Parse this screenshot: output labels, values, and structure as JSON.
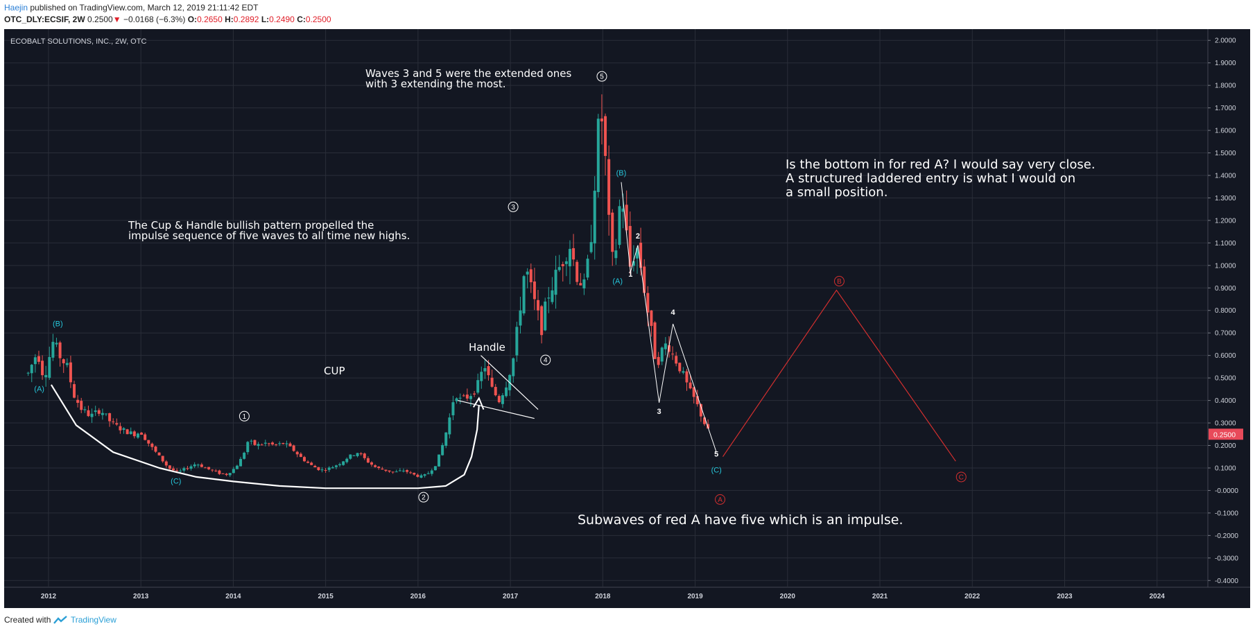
{
  "header": {
    "author": "Haejin",
    "published": " published on TradingView.com, March 12, 2019 21:11:42 EDT",
    "symbol": "OTC_DLY:ECSIF, 2W",
    "last": "0.2500",
    "change_arrow": "▼",
    "change": "−0.0168 (−6.3%)",
    "o_label": "O:",
    "o": "0.2650",
    "h_label": "H:",
    "h": "0.2892",
    "l_label": "L:",
    "l": "0.2490",
    "c_label": "C:",
    "c": "0.2500"
  },
  "footer": {
    "created": "Created with",
    "brand": "TradingView"
  },
  "colors": {
    "bg": "#131722",
    "grid": "#2a2e39",
    "up": "#26a69a",
    "down": "#ef5350",
    "accent_cyan": "#26c6da",
    "red_wave": "#d32f2f",
    "price_tag": "#e84a5a"
  },
  "chart_data": {
    "type": "candlestick",
    "title": "ECOBALT SOLUTIONS, INC., 2W, OTC",
    "ylim": [
      -0.43,
      2.05
    ],
    "y_ticks": [
      "2.0000",
      "1.9000",
      "1.8000",
      "1.7000",
      "1.6000",
      "1.5000",
      "1.4000",
      "1.3000",
      "1.2000",
      "1.1000",
      "1.0000",
      "0.9000",
      "0.8000",
      "0.7000",
      "0.6000",
      "0.5000",
      "0.4000",
      "0.3000",
      "0.2000",
      "0.1000",
      "-0.0000",
      "-0.1000",
      "-0.2000",
      "-0.3000",
      "-0.4000"
    ],
    "y_tick_values": [
      2.0,
      1.9,
      1.8,
      1.7,
      1.6,
      1.5,
      1.4,
      1.3,
      1.2,
      1.1,
      1.0,
      0.9,
      0.8,
      0.7,
      0.6,
      0.5,
      0.4,
      0.3,
      0.2,
      0.1,
      0.0,
      -0.1,
      -0.2,
      -0.3,
      -0.4
    ],
    "x_ticks": [
      "2012",
      "2013",
      "2014",
      "2015",
      "2016",
      "2017",
      "2018",
      "2019",
      "2020",
      "2021",
      "2022",
      "2023",
      "2024"
    ],
    "x_range": [
      2011.52,
      2024.55
    ],
    "last_price": "0.2500",
    "last_price_value": 0.25,
    "price_path": [
      [
        2011.78,
        0.52
      ],
      [
        2011.88,
        0.62
      ],
      [
        2011.95,
        0.5
      ],
      [
        2012.05,
        0.66
      ],
      [
        2012.12,
        0.6
      ],
      [
        2012.2,
        0.55
      ],
      [
        2012.28,
        0.42
      ],
      [
        2012.36,
        0.36
      ],
      [
        2012.46,
        0.33
      ],
      [
        2012.56,
        0.36
      ],
      [
        2012.68,
        0.3
      ],
      [
        2012.8,
        0.27
      ],
      [
        2012.92,
        0.25
      ],
      [
        2013.0,
        0.26
      ],
      [
        2013.1,
        0.2
      ],
      [
        2013.2,
        0.15
      ],
      [
        2013.3,
        0.1
      ],
      [
        2013.4,
        0.08
      ],
      [
        2013.5,
        0.1
      ],
      [
        2013.6,
        0.12
      ],
      [
        2013.7,
        0.1
      ],
      [
        2013.82,
        0.08
      ],
      [
        2013.92,
        0.07
      ],
      [
        2014.02,
        0.1
      ],
      [
        2014.1,
        0.15
      ],
      [
        2014.16,
        0.22
      ],
      [
        2014.25,
        0.2
      ],
      [
        2014.35,
        0.21
      ],
      [
        2014.45,
        0.2
      ],
      [
        2014.55,
        0.21
      ],
      [
        2014.65,
        0.18
      ],
      [
        2014.75,
        0.14
      ],
      [
        2014.85,
        0.11
      ],
      [
        2014.95,
        0.09
      ],
      [
        2015.05,
        0.1
      ],
      [
        2015.15,
        0.12
      ],
      [
        2015.25,
        0.15
      ],
      [
        2015.35,
        0.17
      ],
      [
        2015.45,
        0.13
      ],
      [
        2015.55,
        0.1
      ],
      [
        2015.65,
        0.09
      ],
      [
        2015.75,
        0.08
      ],
      [
        2015.85,
        0.09
      ],
      [
        2015.95,
        0.07
      ],
      [
        2016.05,
        0.06
      ],
      [
        2016.12,
        0.08
      ],
      [
        2016.2,
        0.12
      ],
      [
        2016.28,
        0.22
      ],
      [
        2016.34,
        0.32
      ],
      [
        2016.4,
        0.44
      ],
      [
        2016.46,
        0.4
      ],
      [
        2016.55,
        0.42
      ],
      [
        2016.64,
        0.46
      ],
      [
        2016.72,
        0.56
      ],
      [
        2016.8,
        0.45
      ],
      [
        2016.88,
        0.4
      ],
      [
        2016.96,
        0.48
      ],
      [
        2017.04,
        0.6
      ],
      [
        2017.1,
        0.8
      ],
      [
        2017.16,
        1.0
      ],
      [
        2017.22,
        0.9
      ],
      [
        2017.28,
        0.8
      ],
      [
        2017.34,
        0.72
      ],
      [
        2017.4,
        0.86
      ],
      [
        2017.48,
        0.94
      ],
      [
        2017.56,
        1.02
      ],
      [
        2017.64,
        1.1
      ],
      [
        2017.72,
        0.96
      ],
      [
        2017.8,
        0.9
      ],
      [
        2017.86,
        1.06
      ],
      [
        2017.9,
        1.3
      ],
      [
        2017.94,
        1.55
      ],
      [
        2017.98,
        1.7
      ],
      [
        2018.03,
        1.45
      ],
      [
        2018.07,
        1.15
      ],
      [
        2018.11,
        1.0
      ],
      [
        2018.15,
        1.1
      ],
      [
        2018.2,
        1.35
      ],
      [
        2018.25,
        1.16
      ],
      [
        2018.3,
        0.98
      ],
      [
        2018.36,
        1.1
      ],
      [
        2018.42,
        0.98
      ],
      [
        2018.47,
        0.84
      ],
      [
        2018.52,
        0.72
      ],
      [
        2018.58,
        0.56
      ],
      [
        2018.64,
        0.62
      ],
      [
        2018.7,
        0.66
      ],
      [
        2018.76,
        0.6
      ],
      [
        2018.82,
        0.56
      ],
      [
        2018.88,
        0.5
      ],
      [
        2018.94,
        0.44
      ],
      [
        2019.0,
        0.4
      ],
      [
        2019.06,
        0.34
      ],
      [
        2019.12,
        0.28
      ],
      [
        2019.16,
        0.25
      ]
    ],
    "annotations": [
      {
        "key": "ann_cup",
        "text": "The Cup & Handle bullish pattern propelled the",
        "text2": "impulse sequence of five waves to all time new highs."
      },
      {
        "key": "ann_waves",
        "text": "Waves 3 and 5 were the extended ones",
        "text2": "with 3 extending the most."
      },
      {
        "key": "ann_bottom",
        "text": "Is the bottom in for red A? I would say very close.",
        "text2": "A structured laddered entry is what I would on",
        "text3": "a small position."
      },
      {
        "key": "ann_sub",
        "text": "Subwaves of red A have five which is an impulse."
      },
      {
        "key": "lbl_cup",
        "text": "CUP"
      },
      {
        "key": "lbl_handle",
        "text": "Handle"
      }
    ],
    "wave_labels": {
      "circled_white": [
        {
          "t": "1",
          "x": 2014.12,
          "y": 0.33
        },
        {
          "t": "2",
          "x": 2016.06,
          "y": -0.03
        },
        {
          "t": "3",
          "x": 2017.03,
          "y": 1.26
        },
        {
          "t": "4",
          "x": 2017.38,
          "y": 0.58
        },
        {
          "t": "5",
          "x": 2017.99,
          "y": 1.84
        }
      ],
      "cyan": [
        {
          "t": "(A)",
          "x": 2011.9,
          "y": 0.44
        },
        {
          "t": "(B)",
          "x": 2012.1,
          "y": 0.73
        },
        {
          "t": "(C)",
          "x": 2013.38,
          "y": 0.03
        },
        {
          "t": "(A)",
          "x": 2018.16,
          "y": 0.92
        },
        {
          "t": "(B)",
          "x": 2018.2,
          "y": 1.4
        },
        {
          "t": "(C)",
          "x": 2019.23,
          "y": 0.08
        }
      ],
      "white_small": [
        {
          "t": "1",
          "x": 2018.3,
          "y": 0.95
        },
        {
          "t": "2",
          "x": 2018.38,
          "y": 1.12
        },
        {
          "t": "3",
          "x": 2018.61,
          "y": 0.34
        },
        {
          "t": "4",
          "x": 2018.76,
          "y": 0.78
        },
        {
          "t": "5",
          "x": 2019.23,
          "y": 0.15
        }
      ],
      "red_circled": [
        {
          "t": "A",
          "x": 2019.27,
          "y": -0.04
        },
        {
          "t": "B",
          "x": 2020.56,
          "y": 0.93
        },
        {
          "t": "C",
          "x": 2021.88,
          "y": 0.06
        }
      ]
    },
    "red_projection": [
      [
        2019.3,
        0.15
      ],
      [
        2020.53,
        0.89
      ],
      [
        2021.82,
        0.13
      ]
    ]
  }
}
